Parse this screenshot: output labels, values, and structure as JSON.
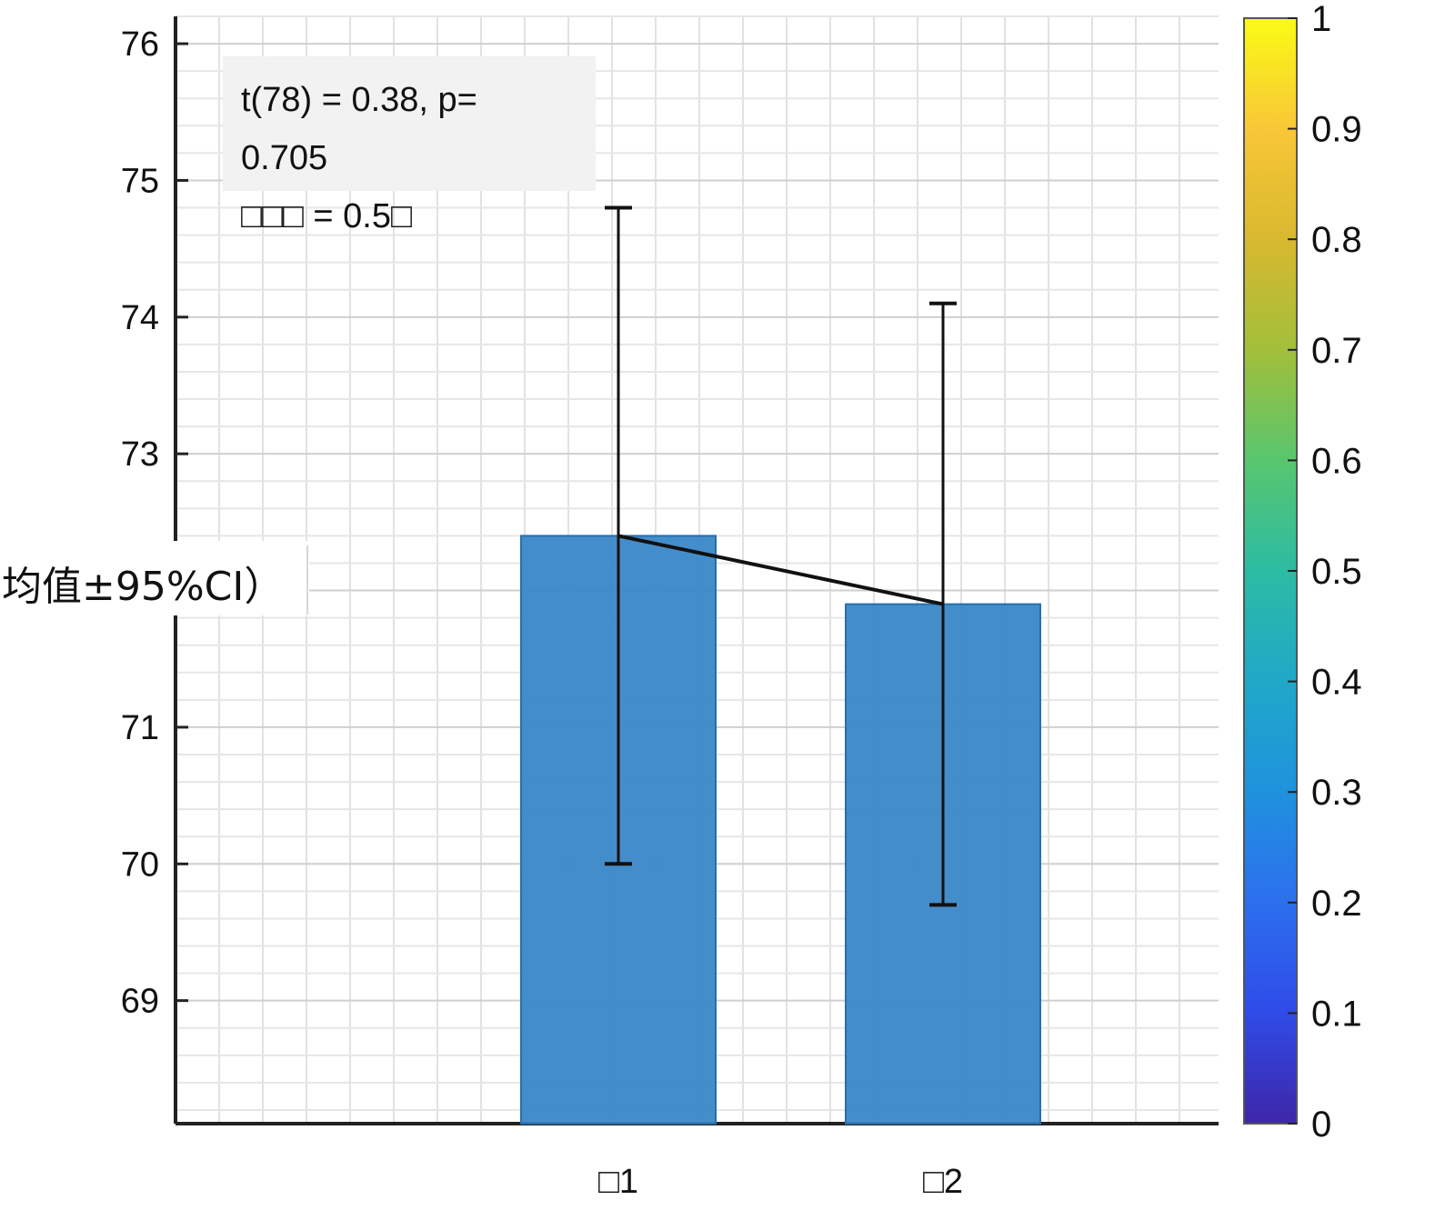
{
  "chart_data": {
    "type": "bar",
    "categories": [
      "□1",
      "□2"
    ],
    "values": [
      72.4,
      71.9
    ],
    "error_bars": {
      "upper": [
        74.8,
        74.1
      ],
      "lower": [
        70.0,
        69.7
      ]
    },
    "connector_line": true,
    "ylabel": "均值±95%CI）",
    "xlabel": "",
    "ylim": [
      68.1,
      76.2
    ],
    "yticks": [
      69,
      70,
      71,
      73,
      74,
      75,
      76
    ],
    "grid": true,
    "bar_color": "#3a87c8",
    "annotation": {
      "line1": "t(78) = 0.38, p=",
      "line2": "0.705",
      "line3": "□□□ = 0.5□"
    },
    "colorbar": {
      "ticks": [
        "0",
        "0.1",
        "0.2",
        "0.3",
        "0.4",
        "0.5",
        "0.6",
        "0.7",
        "0.8",
        "0.9",
        "1"
      ],
      "colormap": [
        "#3e26a8",
        "#2f4be8",
        "#2c6fef",
        "#1f92dd",
        "#1fa8c8",
        "#2cbca3",
        "#58c66e",
        "#a2bf3a",
        "#d8b82f",
        "#f9c737",
        "#f9fb15"
      ]
    }
  }
}
